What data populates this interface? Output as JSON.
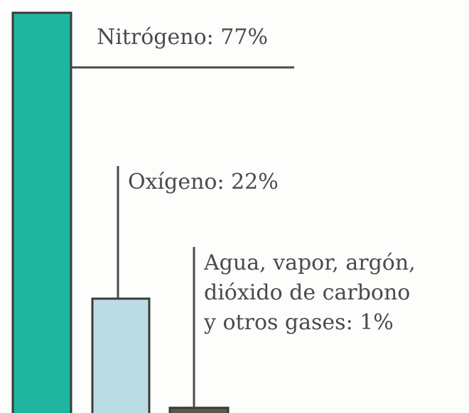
{
  "chart_data": {
    "type": "bar",
    "unit": "%",
    "categories": [
      "Nitrógeno",
      "Oxígeno",
      "Agua, vapor, argón, dióxido de carbono y otros gases"
    ],
    "values": [
      77,
      22,
      1
    ],
    "labels": [
      [
        "Nitrógeno: 77%"
      ],
      [
        "Oxígeno: 22%"
      ],
      [
        "Agua, vapor, argón,",
        "dióxido de carbono",
        "y otros gases: 1%"
      ]
    ],
    "colors": [
      "#1fb59e",
      "#bcdce4",
      "#5e5848"
    ],
    "outline_color": "#3b3b3b",
    "leader_color": "#4a4a4a"
  }
}
